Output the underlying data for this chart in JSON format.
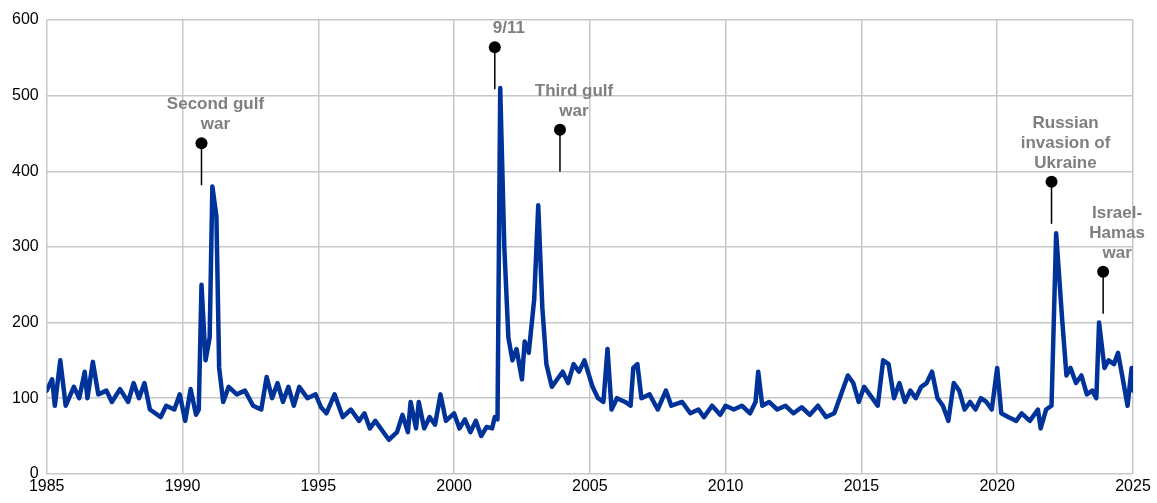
{
  "chart_data": {
    "type": "line",
    "xlim": [
      1985,
      2025
    ],
    "xticks": [
      1985,
      1990,
      1995,
      2000,
      2005,
      2010,
      2015,
      2020,
      2025
    ],
    "ylim": [
      0,
      600
    ],
    "yticks": [
      0,
      100,
      200,
      300,
      400,
      500,
      600
    ],
    "grid": true,
    "legend": false,
    "marker": "none",
    "line_style": "solid",
    "annotations": [
      {
        "text": "Second gulf war",
        "x": 1990.7,
        "y": 437
      },
      {
        "text": "9/11",
        "x": 2001.5,
        "y": 564
      },
      {
        "text": "Third gulf war",
        "x": 2003.9,
        "y": 455
      },
      {
        "text": "Russian invasion of Ukraine",
        "x": 2022.0,
        "y": 386
      },
      {
        "text": "Israel-Hamas war",
        "x": 2023.9,
        "y": 267
      }
    ],
    "series": [
      {
        "color": "#003399",
        "x": [
          1985.0,
          1985.2,
          1985.3,
          1985.5,
          1985.7,
          1986.0,
          1986.2,
          1986.4,
          1986.5,
          1986.7,
          1986.9,
          1987.2,
          1987.4,
          1987.7,
          1988.0,
          1988.2,
          1988.4,
          1988.6,
          1988.8,
          1989.2,
          1989.4,
          1989.7,
          1989.9,
          1990.1,
          1990.3,
          1990.5,
          1990.6,
          1990.7,
          1990.85,
          1991.0,
          1991.1,
          1991.25,
          1991.35,
          1991.5,
          1991.7,
          1992.0,
          1992.3,
          1992.6,
          1992.9,
          1993.1,
          1993.3,
          1993.5,
          1993.7,
          1993.9,
          1994.1,
          1994.3,
          1994.6,
          1994.9,
          1995.1,
          1995.3,
          1995.6,
          1995.9,
          1996.2,
          1996.5,
          1996.7,
          1996.9,
          1997.1,
          1997.4,
          1997.6,
          1997.9,
          1998.1,
          1998.3,
          1998.4,
          1998.6,
          1998.7,
          1998.9,
          1999.1,
          1999.3,
          1999.5,
          1999.7,
          2000.0,
          2000.2,
          2000.4,
          2000.6,
          2000.8,
          2001.0,
          2001.2,
          2001.4,
          2001.5,
          2001.6,
          2001.7,
          2001.85,
          2002.0,
          2002.15,
          2002.3,
          2002.5,
          2002.6,
          2002.75,
          2002.95,
          2003.1,
          2003.25,
          2003.4,
          2003.6,
          2003.8,
          2004.0,
          2004.2,
          2004.4,
          2004.6,
          2004.8,
          2005.1,
          2005.3,
          2005.5,
          2005.65,
          2005.8,
          2006.0,
          2006.3,
          2006.5,
          2006.6,
          2006.75,
          2006.9,
          2007.2,
          2007.5,
          2007.8,
          2008.0,
          2008.4,
          2008.7,
          2009.0,
          2009.2,
          2009.5,
          2009.8,
          2010.0,
          2010.3,
          2010.6,
          2010.9,
          2011.1,
          2011.2,
          2011.35,
          2011.6,
          2011.9,
          2012.2,
          2012.5,
          2012.8,
          2013.1,
          2013.4,
          2013.7,
          2014.0,
          2014.2,
          2014.5,
          2014.7,
          2014.9,
          2015.1,
          2015.4,
          2015.6,
          2015.8,
          2016.0,
          2016.2,
          2016.4,
          2016.6,
          2016.8,
          2017.0,
          2017.2,
          2017.4,
          2017.6,
          2017.8,
          2018.0,
          2018.2,
          2018.4,
          2018.6,
          2018.8,
          2019.0,
          2019.2,
          2019.4,
          2019.6,
          2019.8,
          2020.0,
          2020.15,
          2020.4,
          2020.7,
          2020.9,
          2021.2,
          2021.5,
          2021.6,
          2021.8,
          2022.0,
          2022.17,
          2022.4,
          2022.55,
          2022.7,
          2022.9,
          2023.1,
          2023.3,
          2023.5,
          2023.65,
          2023.75,
          2023.95,
          2024.1,
          2024.3,
          2024.45,
          2024.6,
          2024.8,
          2024.95,
          2025.0
        ],
        "values": [
          110,
          125,
          90,
          150,
          90,
          115,
          100,
          135,
          100,
          148,
          105,
          110,
          95,
          112,
          95,
          120,
          100,
          120,
          85,
          75,
          90,
          85,
          105,
          70,
          112,
          78,
          85,
          250,
          150,
          180,
          380,
          340,
          140,
          95,
          115,
          105,
          110,
          90,
          85,
          128,
          100,
          120,
          95,
          115,
          90,
          115,
          100,
          105,
          88,
          80,
          105,
          75,
          85,
          70,
          80,
          60,
          70,
          55,
          45,
          55,
          78,
          55,
          95,
          60,
          95,
          60,
          75,
          65,
          105,
          70,
          80,
          60,
          72,
          55,
          70,
          50,
          62,
          60,
          75,
          72,
          510,
          300,
          180,
          150,
          165,
          125,
          175,
          160,
          230,
          355,
          220,
          145,
          115,
          125,
          135,
          120,
          145,
          135,
          150,
          115,
          100,
          95,
          165,
          85,
          100,
          95,
          90,
          140,
          145,
          100,
          105,
          85,
          110,
          90,
          95,
          80,
          85,
          75,
          90,
          78,
          90,
          85,
          90,
          80,
          95,
          135,
          90,
          95,
          85,
          90,
          80,
          88,
          78,
          90,
          75,
          80,
          100,
          130,
          120,
          95,
          115,
          100,
          90,
          150,
          145,
          100,
          120,
          95,
          110,
          100,
          115,
          120,
          135,
          100,
          90,
          70,
          120,
          110,
          85,
          95,
          85,
          100,
          95,
          85,
          140,
          80,
          75,
          70,
          80,
          70,
          85,
          60,
          85,
          90,
          318,
          200,
          130,
          140,
          120,
          130,
          105,
          110,
          100,
          200,
          140,
          150,
          145,
          160,
          130,
          90,
          140,
          110
        ]
      }
    ]
  }
}
